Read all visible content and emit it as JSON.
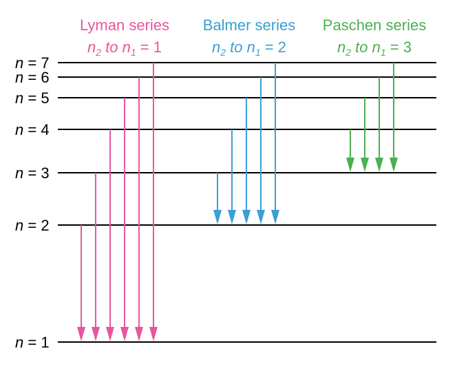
{
  "levels": [
    {
      "n": "1",
      "label_var": "n",
      "label_rest": " = 1"
    },
    {
      "n": "2",
      "label_var": "n",
      "label_rest": " = 2"
    },
    {
      "n": "3",
      "label_var": "n",
      "label_rest": " = 3"
    },
    {
      "n": "4",
      "label_var": "n",
      "label_rest": " = 4"
    },
    {
      "n": "5",
      "label_var": "n",
      "label_rest": " = 5"
    },
    {
      "n": "6",
      "label_var": "n",
      "label_rest": " = 6"
    },
    {
      "n": "7",
      "label_var": "n",
      "label_rest": " = 7"
    }
  ],
  "series": [
    {
      "name": "Lyman series",
      "sub_n2": "n",
      "sub_n2_idx": "2",
      "sub_to": " to ",
      "sub_n1": "n",
      "sub_n1_idx": "1",
      "sub_eq": " = 1",
      "color": "#e8559e",
      "target": 1,
      "from": [
        2,
        3,
        4,
        5,
        6,
        7
      ]
    },
    {
      "name": "Balmer series",
      "sub_n2": "n",
      "sub_n2_idx": "2",
      "sub_to": " to ",
      "sub_n1": "n",
      "sub_n1_idx": "1",
      "sub_eq": " = 2",
      "color": "#3a9fd4",
      "target": 2,
      "from": [
        3,
        4,
        5,
        6,
        7
      ]
    },
    {
      "name": "Paschen series",
      "sub_n2": "n",
      "sub_n2_idx": "2",
      "sub_to": " to ",
      "sub_n1": "n",
      "sub_n1_idx": "1",
      "sub_eq": " = 3",
      "color": "#4caf50",
      "target": 3,
      "from": [
        4,
        5,
        6,
        7
      ]
    }
  ]
}
